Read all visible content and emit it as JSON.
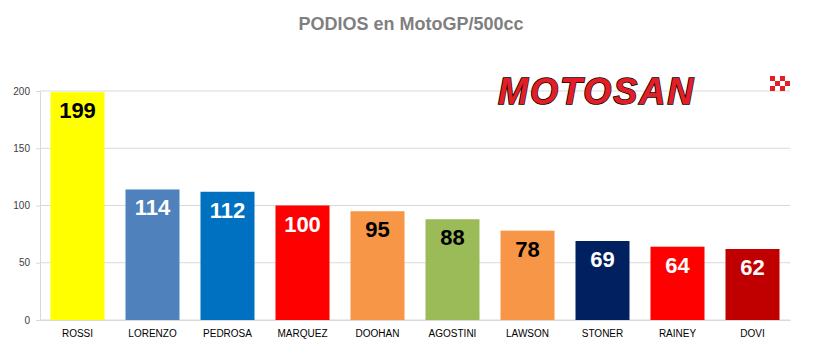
{
  "chart_data": {
    "type": "bar",
    "title": "PODIOS en MotoGP/500cc",
    "categories": [
      "ROSSI",
      "LORENZO",
      "PEDROSA",
      "MARQUEZ",
      "DOOHAN",
      "AGOSTINI",
      "LAWSON",
      "STONER",
      "RAINEY",
      "DOVI"
    ],
    "values": [
      199,
      114,
      112,
      100,
      95,
      88,
      78,
      69,
      64,
      62
    ],
    "colors": [
      "#ffff00",
      "#4f81bd",
      "#0070c0",
      "#ff0000",
      "#f79646",
      "#9bbb59",
      "#f79646",
      "#002060",
      "#ff0000",
      "#c00000"
    ],
    "ylim": [
      0,
      200
    ],
    "yticks": [
      0,
      50,
      100,
      150,
      200
    ],
    "grid": true,
    "data_labels": true,
    "annotations": [
      "MOTOSAN"
    ]
  }
}
